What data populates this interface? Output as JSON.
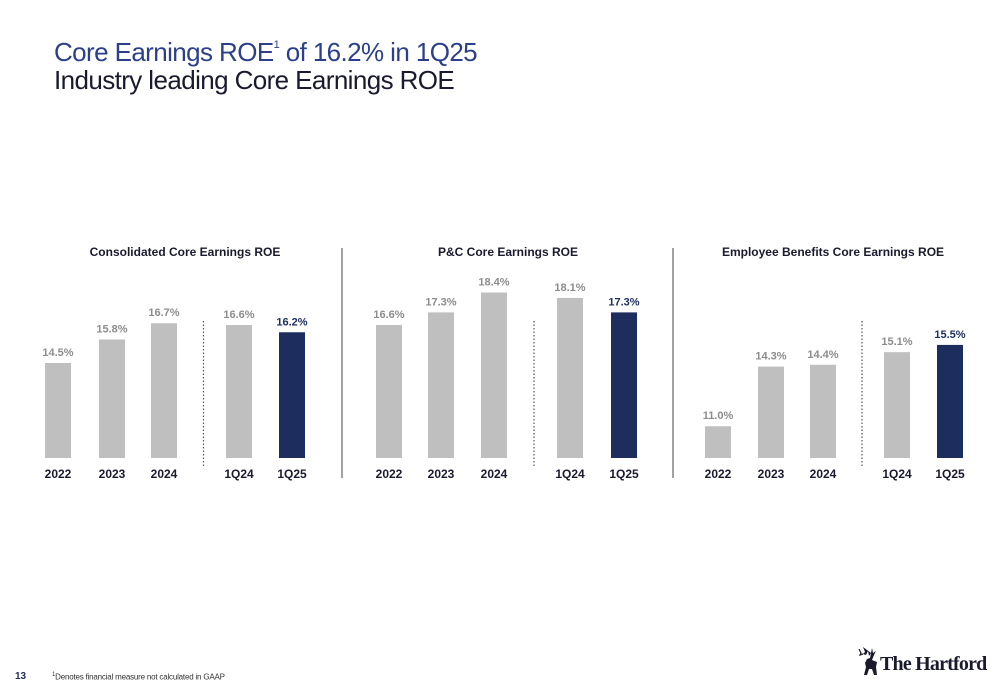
{
  "title": {
    "line1_prefix": "Core Earnings ROE",
    "line1_sup": "1",
    "line1_suffix": " of 16.2% in 1Q25",
    "line2": "Industry leading Core Earnings ROE"
  },
  "colors": {
    "bar_gray": "#bfbfbf",
    "bar_highlight": "#1c2d5e",
    "label_gray": "#8c8c8c",
    "label_highlight": "#1c2d5e"
  },
  "chart_data": [
    {
      "type": "bar",
      "title": "Consolidated Core Earnings ROE",
      "categories": [
        "2022",
        "2023",
        "2024",
        "1Q24",
        "1Q25"
      ],
      "values": [
        14.5,
        15.8,
        16.7,
        16.6,
        16.2
      ],
      "value_labels": [
        "14.5%",
        "15.8%",
        "16.7%",
        "16.6%",
        "16.2%"
      ],
      "highlight_index": 4,
      "separator_after_index": 2
    },
    {
      "type": "bar",
      "title": "P&C Core Earnings ROE",
      "categories": [
        "2022",
        "2023",
        "2024",
        "1Q24",
        "1Q25"
      ],
      "values": [
        16.6,
        17.3,
        18.4,
        18.1,
        17.3
      ],
      "value_labels": [
        "16.6%",
        "17.3%",
        "18.4%",
        "18.1%",
        "17.3%"
      ],
      "highlight_index": 4,
      "separator_after_index": 2
    },
    {
      "type": "bar",
      "title": "Employee Benefits Core Earnings ROE",
      "categories": [
        "2022",
        "2023",
        "2024",
        "1Q24",
        "1Q25"
      ],
      "values": [
        11.0,
        14.3,
        14.4,
        15.1,
        15.5
      ],
      "value_labels": [
        "11.0%",
        "14.3%",
        "14.4%",
        "15.1%",
        "15.5%"
      ],
      "highlight_index": 4,
      "separator_after_index": 2
    }
  ],
  "footer": {
    "page_number": "13",
    "footnote_sup": "1",
    "footnote_text": "Denotes financial measure not calculated in GAAP"
  },
  "logo": {
    "text": "The Hartford",
    "icon": "stag-icon"
  }
}
